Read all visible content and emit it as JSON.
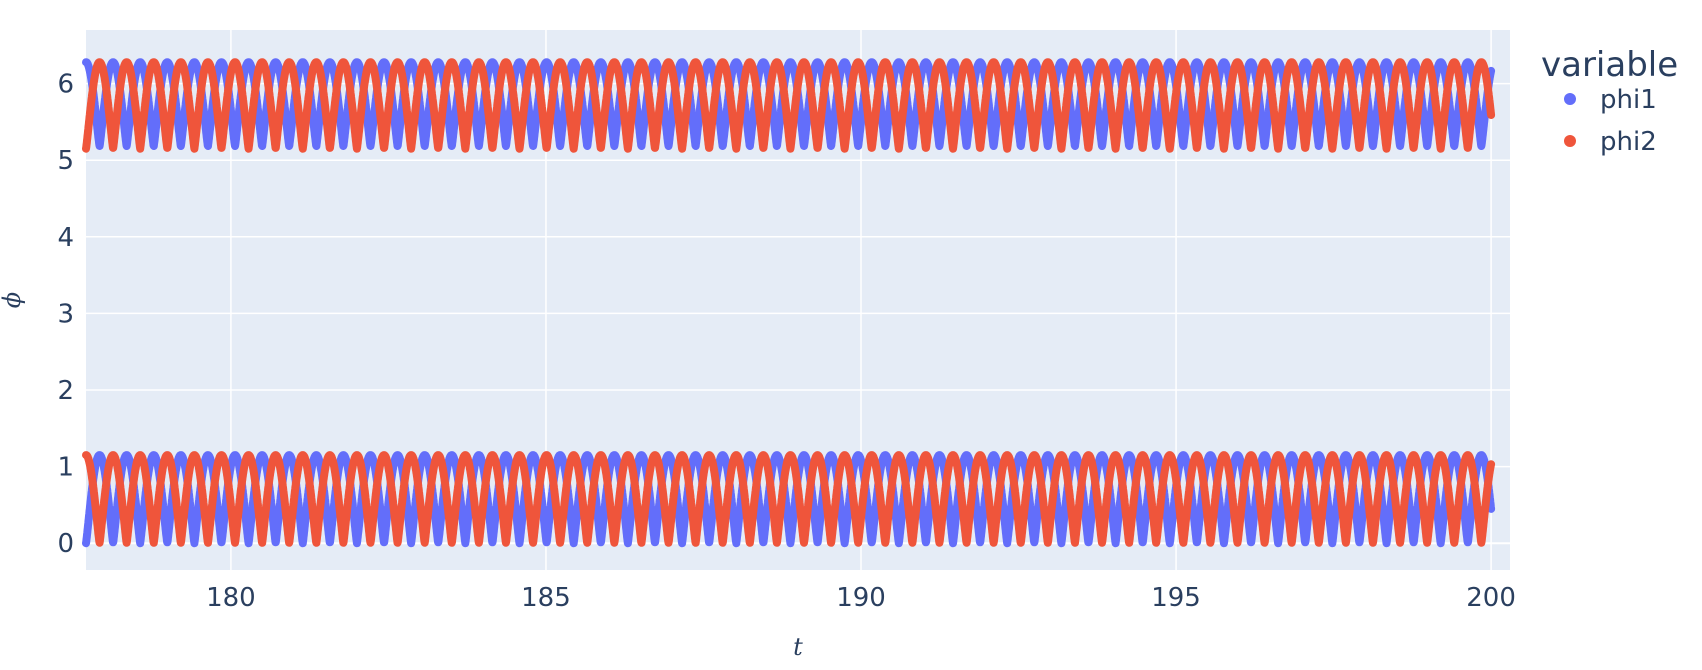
{
  "chart_data": {
    "type": "scatter",
    "xlabel": "t",
    "ylabel": "ϕ",
    "xlim": [
      177.7,
      200.3
    ],
    "ylim": [
      -0.35,
      6.7
    ],
    "x_ticks": [
      180,
      185,
      190,
      195,
      200
    ],
    "y_ticks": [
      0,
      1,
      2,
      3,
      4,
      5,
      6
    ],
    "grid": true,
    "legend": {
      "title": "variable",
      "position": "top-right, outside plot"
    },
    "plot_background": "#e5ecf6",
    "t_start": 177.7,
    "t_end": 200.0,
    "oscillation_period": 0.43,
    "series": [
      {
        "name": "phi1",
        "color": "#636efa",
        "bands": [
          {
            "min": 5.18,
            "max": 6.28,
            "phase_cycles": 0.5
          },
          {
            "min": 0.0,
            "max": 1.15,
            "phase_cycles": 0.0
          }
        ]
      },
      {
        "name": "phi2",
        "color": "#ef553b",
        "bands": [
          {
            "min": 5.15,
            "max": 6.28,
            "phase_cycles": 0.0
          },
          {
            "min": 0.0,
            "max": 1.15,
            "phase_cycles": 0.5
          }
        ]
      }
    ]
  }
}
